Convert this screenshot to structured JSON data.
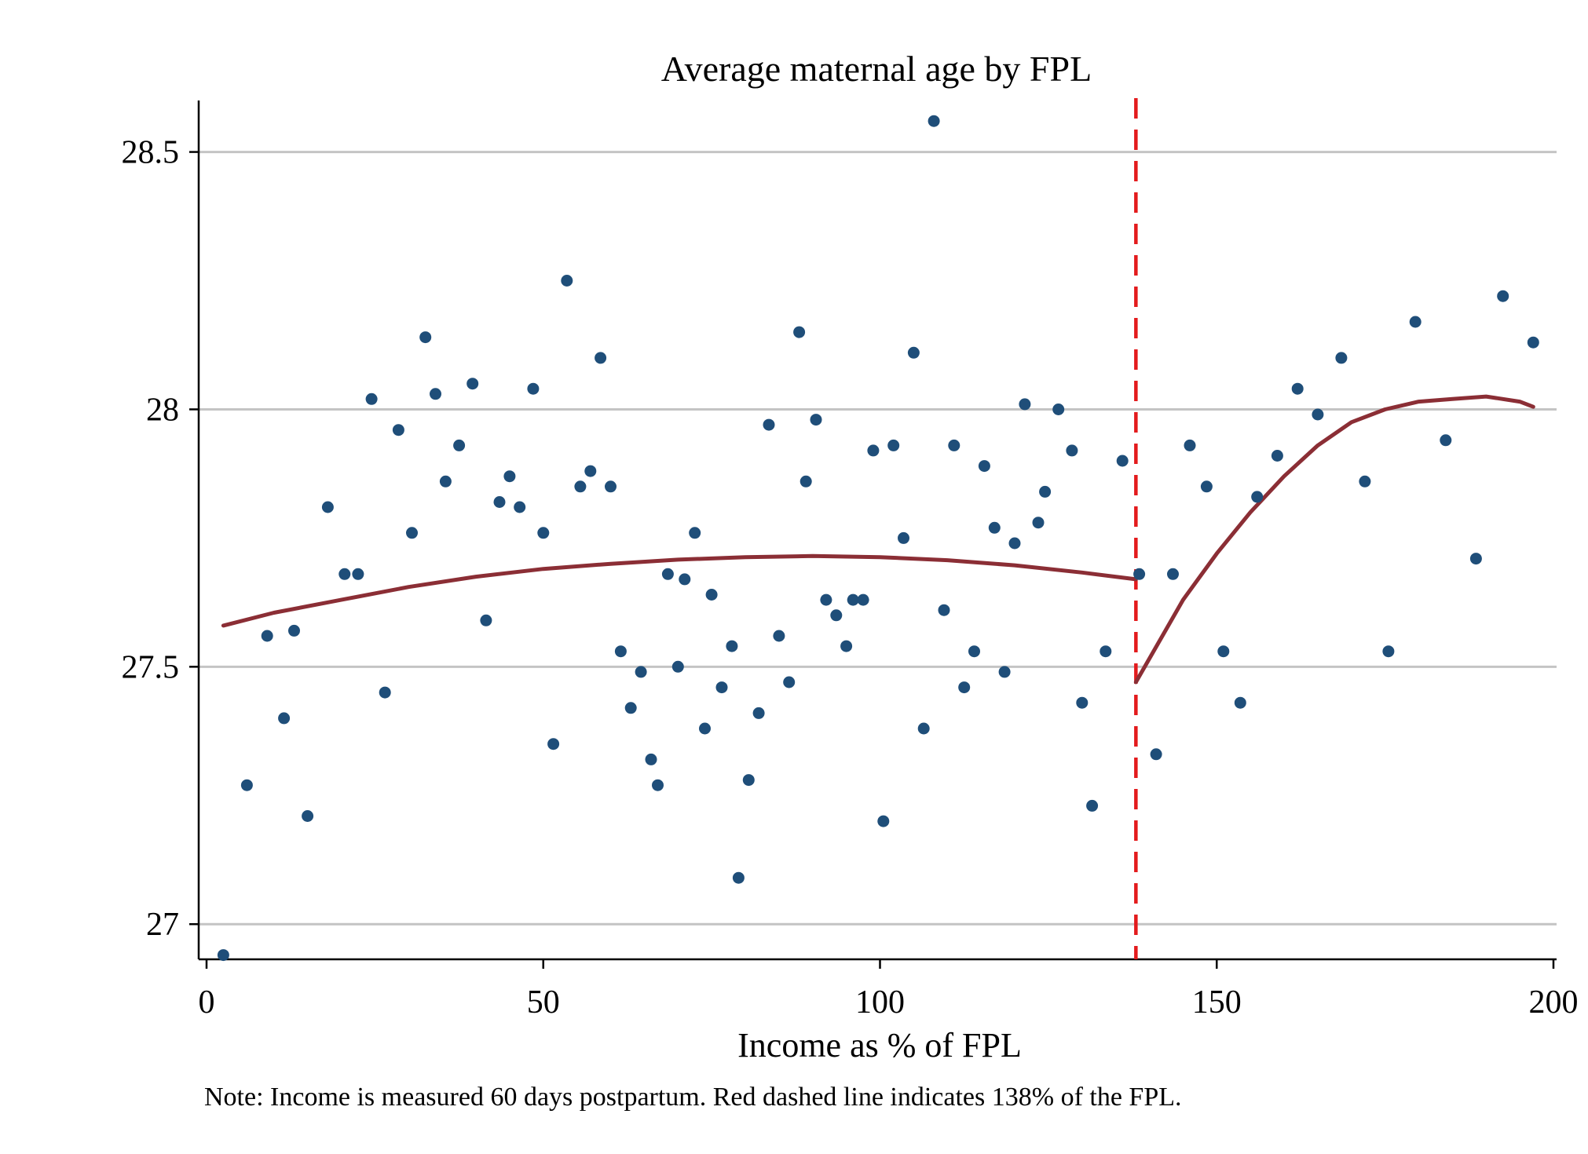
{
  "chart_data": {
    "type": "scatter",
    "title": "Average maternal age by FPL",
    "xlabel": "Income as % of FPL",
    "ylabel": "",
    "note": "Note: Income is measured 60 days postpartum. Red dashed line indicates 138% of the FPL.",
    "xlim": [
      0,
      200
    ],
    "ylim": [
      26.95,
      28.6
    ],
    "x_ticks": [
      0,
      50,
      100,
      150,
      200
    ],
    "x_tick_labels": [
      "0",
      "50",
      "100",
      "150",
      "200"
    ],
    "y_ticks": [
      27,
      27.5,
      28,
      28.5
    ],
    "y_tick_labels": [
      "27",
      "27.5",
      "28",
      "28.5"
    ],
    "grid": "horizontal",
    "threshold": {
      "x": 138,
      "style": "dashed",
      "color": "#e31a1c"
    },
    "points_color": "#1f4e79",
    "fit_color": "#8b2e35",
    "points": [
      {
        "x": 2.5,
        "y": 26.94
      },
      {
        "x": 6,
        "y": 27.27
      },
      {
        "x": 9,
        "y": 27.56
      },
      {
        "x": 11.5,
        "y": 27.4
      },
      {
        "x": 13,
        "y": 27.57
      },
      {
        "x": 15,
        "y": 27.21
      },
      {
        "x": 18,
        "y": 27.81
      },
      {
        "x": 20.5,
        "y": 27.68
      },
      {
        "x": 22.5,
        "y": 27.68
      },
      {
        "x": 24.5,
        "y": 28.02
      },
      {
        "x": 26.5,
        "y": 27.45
      },
      {
        "x": 28.5,
        "y": 27.96
      },
      {
        "x": 30.5,
        "y": 27.76
      },
      {
        "x": 32.5,
        "y": 28.14
      },
      {
        "x": 34,
        "y": 28.03
      },
      {
        "x": 35.5,
        "y": 27.86
      },
      {
        "x": 37.5,
        "y": 27.93
      },
      {
        "x": 39.5,
        "y": 28.05
      },
      {
        "x": 41.5,
        "y": 27.59
      },
      {
        "x": 43.5,
        "y": 27.82
      },
      {
        "x": 45,
        "y": 27.87
      },
      {
        "x": 46.5,
        "y": 27.81
      },
      {
        "x": 48.5,
        "y": 28.04
      },
      {
        "x": 50,
        "y": 27.76
      },
      {
        "x": 51.5,
        "y": 27.35
      },
      {
        "x": 53.5,
        "y": 28.25
      },
      {
        "x": 55.5,
        "y": 27.85
      },
      {
        "x": 57,
        "y": 27.88
      },
      {
        "x": 58.5,
        "y": 28.1
      },
      {
        "x": 60,
        "y": 27.85
      },
      {
        "x": 61.5,
        "y": 27.53
      },
      {
        "x": 63,
        "y": 27.42
      },
      {
        "x": 64.5,
        "y": 27.49
      },
      {
        "x": 66,
        "y": 27.32
      },
      {
        "x": 67,
        "y": 27.27
      },
      {
        "x": 68.5,
        "y": 27.68
      },
      {
        "x": 70,
        "y": 27.5
      },
      {
        "x": 71,
        "y": 27.67
      },
      {
        "x": 72.5,
        "y": 27.76
      },
      {
        "x": 74,
        "y": 27.38
      },
      {
        "x": 75,
        "y": 27.64
      },
      {
        "x": 76.5,
        "y": 27.46
      },
      {
        "x": 78,
        "y": 27.54
      },
      {
        "x": 79,
        "y": 27.09
      },
      {
        "x": 80.5,
        "y": 27.28
      },
      {
        "x": 82,
        "y": 27.41
      },
      {
        "x": 83.5,
        "y": 27.97
      },
      {
        "x": 85,
        "y": 27.56
      },
      {
        "x": 86.5,
        "y": 27.47
      },
      {
        "x": 88,
        "y": 28.15
      },
      {
        "x": 89,
        "y": 27.86
      },
      {
        "x": 90.5,
        "y": 27.98
      },
      {
        "x": 92,
        "y": 27.63
      },
      {
        "x": 93.5,
        "y": 27.6
      },
      {
        "x": 95,
        "y": 27.54
      },
      {
        "x": 96,
        "y": 27.63
      },
      {
        "x": 97.5,
        "y": 27.63
      },
      {
        "x": 99,
        "y": 27.92
      },
      {
        "x": 100.5,
        "y": 27.2
      },
      {
        "x": 102,
        "y": 27.93
      },
      {
        "x": 103.5,
        "y": 27.75
      },
      {
        "x": 105,
        "y": 28.11
      },
      {
        "x": 106.5,
        "y": 27.38
      },
      {
        "x": 108,
        "y": 28.56
      },
      {
        "x": 109.5,
        "y": 27.61
      },
      {
        "x": 111,
        "y": 27.93
      },
      {
        "x": 112.5,
        "y": 27.46
      },
      {
        "x": 114,
        "y": 27.53
      },
      {
        "x": 115.5,
        "y": 27.89
      },
      {
        "x": 117,
        "y": 27.77
      },
      {
        "x": 118.5,
        "y": 27.49
      },
      {
        "x": 120,
        "y": 27.74
      },
      {
        "x": 121.5,
        "y": 28.01
      },
      {
        "x": 123.5,
        "y": 27.78
      },
      {
        "x": 124.5,
        "y": 27.84
      },
      {
        "x": 126.5,
        "y": 28.0
      },
      {
        "x": 128.5,
        "y": 27.92
      },
      {
        "x": 130,
        "y": 27.43
      },
      {
        "x": 131.5,
        "y": 27.23
      },
      {
        "x": 133.5,
        "y": 27.53
      },
      {
        "x": 136,
        "y": 27.9
      },
      {
        "x": 138.5,
        "y": 27.68
      },
      {
        "x": 141,
        "y": 27.33
      },
      {
        "x": 143.5,
        "y": 27.68
      },
      {
        "x": 146,
        "y": 27.93
      },
      {
        "x": 148.5,
        "y": 27.85
      },
      {
        "x": 151,
        "y": 27.53
      },
      {
        "x": 153.5,
        "y": 27.43
      },
      {
        "x": 156,
        "y": 27.83
      },
      {
        "x": 159,
        "y": 27.91
      },
      {
        "x": 162,
        "y": 28.04
      },
      {
        "x": 165,
        "y": 27.99
      },
      {
        "x": 168.5,
        "y": 28.1
      },
      {
        "x": 172,
        "y": 27.86
      },
      {
        "x": 175.5,
        "y": 27.53
      },
      {
        "x": 179.5,
        "y": 28.17
      },
      {
        "x": 184,
        "y": 27.94
      },
      {
        "x": 188.5,
        "y": 27.71
      },
      {
        "x": 192.5,
        "y": 28.22
      },
      {
        "x": 197,
        "y": 28.13
      }
    ],
    "fit_lines": [
      {
        "x": [
          2.5,
          10,
          20,
          30,
          40,
          50,
          60,
          70,
          80,
          90,
          100,
          110,
          120,
          130,
          138
        ],
        "y": [
          27.58,
          27.605,
          27.63,
          27.655,
          27.675,
          27.69,
          27.7,
          27.708,
          27.713,
          27.715,
          27.713,
          27.707,
          27.697,
          27.683,
          27.67
        ]
      },
      {
        "x": [
          138,
          145,
          150,
          155,
          160,
          165,
          170,
          175,
          180,
          185,
          190,
          195,
          197
        ],
        "y": [
          27.47,
          27.63,
          27.72,
          27.8,
          27.87,
          27.93,
          27.975,
          28.0,
          28.015,
          28.02,
          28.025,
          28.015,
          28.005
        ]
      }
    ]
  }
}
